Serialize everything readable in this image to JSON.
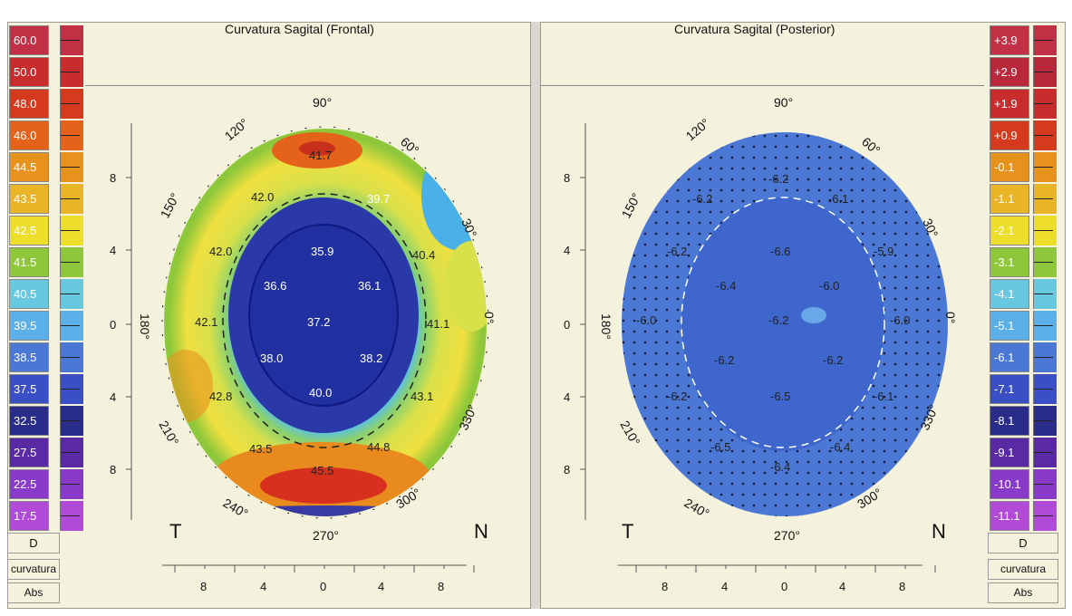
{
  "left_panel": {
    "title": "Curvatura Sagital (Frontal)",
    "scale": {
      "values": [
        "60.0",
        "50.0",
        "48.0",
        "46.0",
        "44.5",
        "43.5",
        "42.5",
        "41.5",
        "40.5",
        "39.5",
        "38.5",
        "37.5",
        "32.5",
        "27.5",
        "22.5",
        "17.5"
      ],
      "colors": [
        "#c23045",
        "#c82c2c",
        "#d63a1e",
        "#e4621a",
        "#e8921e",
        "#eab428",
        "#eede2c",
        "#8ec83a",
        "#68c8e0",
        "#5cb0e8",
        "#4a78d4",
        "#3a4fc4",
        "#2a2c8a",
        "#5a2aa4",
        "#8a3ac8",
        "#b24ad8"
      ],
      "unit": "D",
      "label1": "curvatura",
      "label2": "Abs"
    },
    "map_values": [
      "41.7",
      "42.0",
      "39.7",
      "42.0",
      "35.9",
      "40.4",
      "36.6",
      "36.1",
      "42.1",
      "37.2",
      "41.1",
      "38.0",
      "38.2",
      "42.8",
      "40.0",
      "43.1",
      "43.5",
      "44.8",
      "45.5"
    ],
    "axis": {
      "angles": [
        "90°",
        "120°",
        "60°",
        "150°",
        "30°",
        "180°",
        "0°",
        "210°",
        "330°",
        "240°",
        "300°",
        "270°"
      ],
      "y_ticks": [
        "8",
        "4",
        "0",
        "4",
        "8"
      ],
      "x_ticks": [
        "8",
        "4",
        "0",
        "4",
        "8"
      ],
      "left_corner": "T",
      "right_corner": "N"
    }
  },
  "right_panel": {
    "title": "Curvatura Sagital (Posterior)",
    "scale": {
      "values": [
        "+3.9",
        "+2.9",
        "+1.9",
        "+0.9",
        "-0.1",
        "-1.1",
        "-2.1",
        "-3.1",
        "-4.1",
        "-5.1",
        "-6.1",
        "-7.1",
        "-8.1",
        "-9.1",
        "-10.1",
        "-11.1"
      ],
      "colors": [
        "#c23045",
        "#b8283a",
        "#c82c2c",
        "#d63a1e",
        "#e8921e",
        "#eab428",
        "#eede2c",
        "#8ec83a",
        "#68c8e0",
        "#5cb0e8",
        "#4a78d4",
        "#3a4fc4",
        "#2a2c8a",
        "#5a2aa4",
        "#8a3ac8",
        "#b24ad8"
      ],
      "unit": "D",
      "label1": "curvatura",
      "label2": "Abs"
    },
    "map_values": [
      "-6.2",
      "-6.2",
      "-6.1",
      "-6.2",
      "-6.6",
      "-5.9",
      "-6.4",
      "-6.0",
      "-6.0",
      "-6.2",
      "-6.0",
      "-6.2",
      "-6.2",
      "-6.2",
      "-6.5",
      "-6.1",
      "-6.5",
      "-6.4",
      "-6.4"
    ],
    "axis": {
      "angles": [
        "90°",
        "120°",
        "60°",
        "150°",
        "30°",
        "180°",
        "0°",
        "210°",
        "330°",
        "240°",
        "300°",
        "270°"
      ],
      "y_ticks": [
        "8",
        "4",
        "0",
        "4",
        "8"
      ],
      "x_ticks": [
        "8",
        "4",
        "0",
        "4",
        "8"
      ],
      "left_corner": "T",
      "right_corner": "N"
    }
  }
}
